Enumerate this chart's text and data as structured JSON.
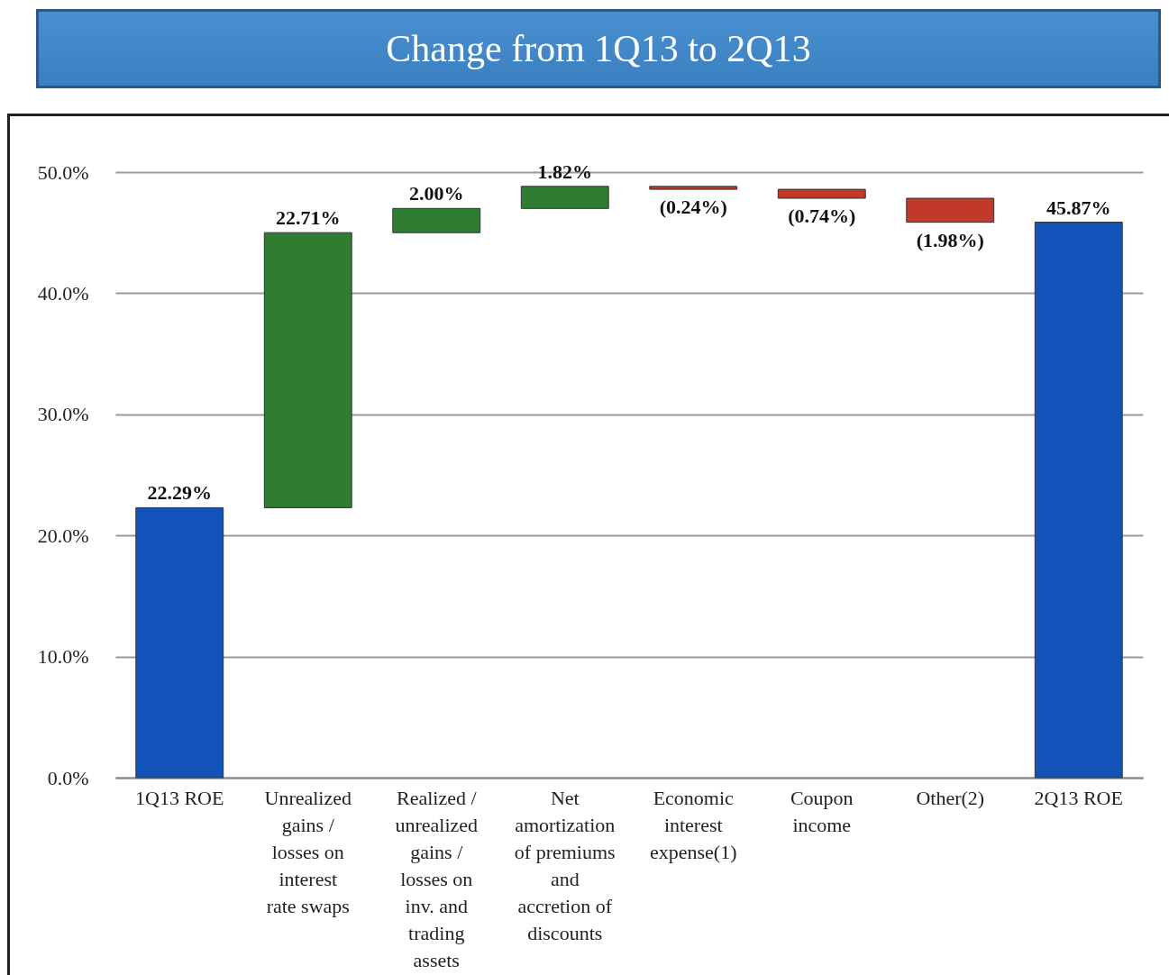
{
  "chart_data": {
    "type": "bar",
    "title": "Change from 1Q13 to 2Q13",
    "categories": [
      "1Q13 ROE",
      "Unrealized gains / losses on interest rate swaps",
      "Realized / unrealized gains / losses on inv. and trading assets",
      "Net amortization of premiums and accretion of discounts",
      "Economic interest expense(1)",
      "Coupon income",
      "Other(2)",
      "2Q13 ROE"
    ],
    "values": [
      22.29,
      22.71,
      2.0,
      1.82,
      -0.24,
      -0.74,
      -1.98,
      45.87
    ],
    "base": [
      0,
      22.29,
      45.0,
      47.0,
      48.82,
      48.58,
      47.84,
      0
    ],
    "colors": [
      "#1153b8",
      "#2e7d32",
      "#2e7d32",
      "#2e7d32",
      "#c0392b",
      "#c0392b",
      "#c0392b",
      "#1153b8"
    ],
    "value_labels": [
      "22.29%",
      "22.71%",
      "2.00%",
      "1.82%",
      "(0.24%)",
      "(0.74%)",
      "(1.98%)",
      "45.87%"
    ],
    "ylim": [
      0,
      50
    ],
    "yticks": [
      {
        "value": 0,
        "label": "0.0%"
      },
      {
        "value": 10,
        "label": "10.0%"
      },
      {
        "value": 20,
        "label": "20.0%"
      },
      {
        "value": 30,
        "label": "30.0%"
      },
      {
        "value": 40,
        "label": "40.0%"
      },
      {
        "value": 50,
        "label": "50.0%"
      }
    ],
    "grid": "y"
  }
}
